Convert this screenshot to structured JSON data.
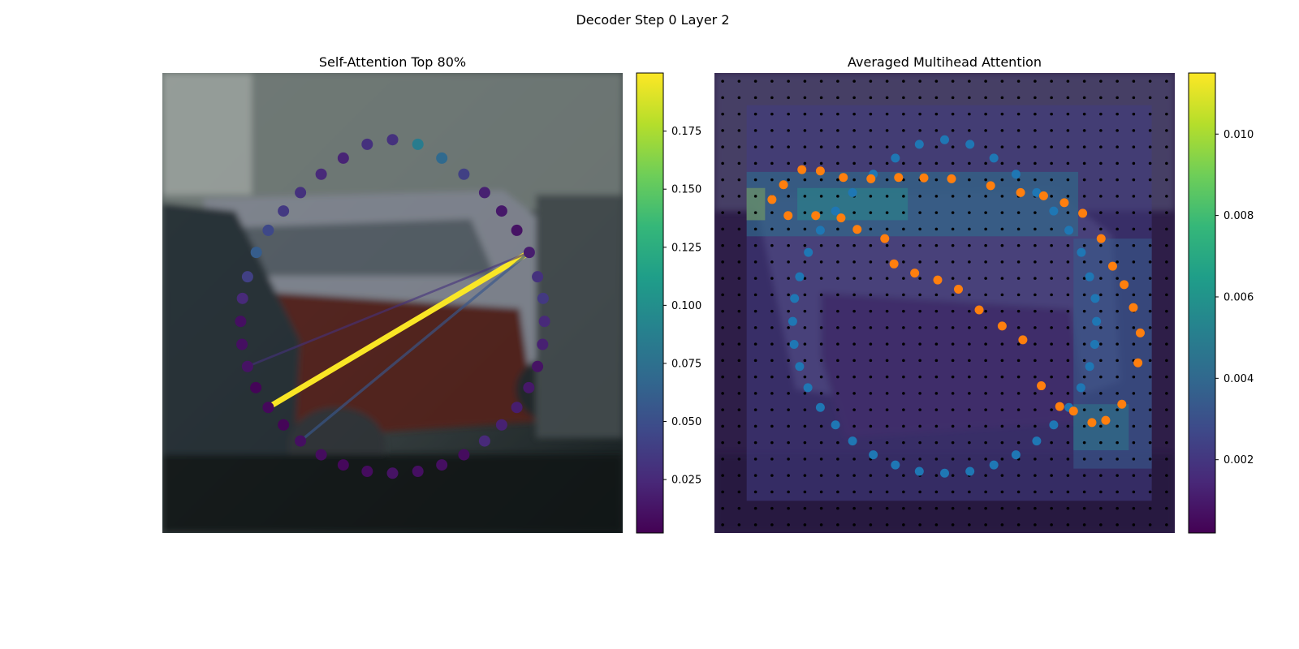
{
  "figure": {
    "suptitle": "Decoder Step 0 Layer 2"
  },
  "colors": {
    "viridis": [
      "#440154",
      "#482878",
      "#3e4989",
      "#31688e",
      "#26828e",
      "#1f9e89",
      "#35b779",
      "#6ece58",
      "#b5de2b",
      "#fde725"
    ],
    "series_blue": "#1f77b4",
    "series_orange": "#ff7f0e",
    "grid_dot": "#000000"
  },
  "chart_data": [
    {
      "type": "scatter",
      "title": "Self-Attention Top 80%",
      "background": "photo-parked-cars",
      "grid": false,
      "colorbar": {
        "range": [
          0.002,
          0.2
        ],
        "ticks": [
          0.025,
          0.05,
          0.075,
          0.1,
          0.125,
          0.15,
          0.175
        ],
        "tick_labels": [
          "0.025",
          "0.050",
          "0.075",
          "0.100",
          "0.125",
          "0.150",
          "0.175"
        ]
      },
      "points": {
        "x": [
          0.5,
          0.555,
          0.607,
          0.655,
          0.7,
          0.737,
          0.77,
          0.797,
          0.815,
          0.827,
          0.83,
          0.826,
          0.815,
          0.796,
          0.77,
          0.737,
          0.7,
          0.655,
          0.607,
          0.555,
          0.5,
          0.445,
          0.393,
          0.345,
          0.3,
          0.263,
          0.23,
          0.203,
          0.185,
          0.173,
          0.17,
          0.174,
          0.185,
          0.204,
          0.23,
          0.263,
          0.3,
          0.345,
          0.393,
          0.445
        ],
        "y": [
          0.145,
          0.155,
          0.185,
          0.22,
          0.26,
          0.3,
          0.342,
          0.39,
          0.443,
          0.49,
          0.54,
          0.59,
          0.638,
          0.684,
          0.727,
          0.765,
          0.8,
          0.83,
          0.852,
          0.866,
          0.87,
          0.866,
          0.852,
          0.83,
          0.8,
          0.765,
          0.727,
          0.684,
          0.638,
          0.59,
          0.54,
          0.49,
          0.443,
          0.39,
          0.342,
          0.3,
          0.26,
          0.22,
          0.185,
          0.155
        ],
        "weight": [
          0.03,
          0.085,
          0.07,
          0.04,
          0.02,
          0.015,
          0.012,
          0.018,
          0.03,
          0.035,
          0.025,
          0.02,
          0.012,
          0.015,
          0.018,
          0.02,
          0.025,
          0.008,
          0.01,
          0.01,
          0.012,
          0.008,
          0.006,
          0.008,
          0.01,
          0.004,
          0.006,
          0.004,
          0.012,
          0.01,
          0.01,
          0.025,
          0.04,
          0.06,
          0.045,
          0.035,
          0.03,
          0.025,
          0.022,
          0.03
        ]
      },
      "attention_lines": [
        {
          "from": 0.166,
          "to": 0.657,
          "weight": 0.199
        },
        {
          "from": 0.166,
          "to": 0.607,
          "weight": 0.055
        },
        {
          "from": 0.166,
          "to": 0.7,
          "weight": 0.03
        }
      ]
    },
    {
      "type": "heatmap",
      "title": "Averaged Multihead Attention",
      "background": "photo-parked-cars",
      "grid_points": true,
      "colorbar": {
        "range": [
          0.0002,
          0.0115
        ],
        "ticks": [
          0.002,
          0.004,
          0.006,
          0.008,
          0.01
        ],
        "tick_labels": [
          "0.002",
          "0.004",
          "0.006",
          "0.008",
          "0.010"
        ]
      },
      "heat_blocks": [
        {
          "x0": 0.07,
          "x1": 0.79,
          "y0": 0.215,
          "y1": 0.355,
          "value": 0.0045
        },
        {
          "x0": 0.18,
          "x1": 0.42,
          "y0": 0.25,
          "y1": 0.32,
          "value": 0.0068
        },
        {
          "x0": 0.07,
          "x1": 0.11,
          "y0": 0.25,
          "y1": 0.32,
          "value": 0.011
        },
        {
          "x0": 0.78,
          "x1": 0.95,
          "y0": 0.36,
          "y1": 0.86,
          "value": 0.0035
        },
        {
          "x0": 0.78,
          "x1": 0.9,
          "y0": 0.72,
          "y1": 0.82,
          "value": 0.0063
        },
        {
          "x0": 0.07,
          "x1": 0.95,
          "y0": 0.07,
          "y1": 0.93,
          "value": 0.0022
        }
      ],
      "series_blue": {
        "x": [
          0.5,
          0.555,
          0.607,
          0.655,
          0.7,
          0.737,
          0.77,
          0.797,
          0.815,
          0.827,
          0.83,
          0.826,
          0.815,
          0.796,
          0.77,
          0.737,
          0.7,
          0.655,
          0.607,
          0.555,
          0.5,
          0.445,
          0.393,
          0.345,
          0.3,
          0.263,
          0.23,
          0.203,
          0.185,
          0.173,
          0.17,
          0.174,
          0.185,
          0.204,
          0.23,
          0.263,
          0.3,
          0.345,
          0.393,
          0.445
        ],
        "y": [
          0.145,
          0.155,
          0.185,
          0.22,
          0.26,
          0.3,
          0.342,
          0.39,
          0.443,
          0.49,
          0.54,
          0.59,
          0.638,
          0.684,
          0.727,
          0.765,
          0.8,
          0.83,
          0.852,
          0.866,
          0.87,
          0.866,
          0.852,
          0.83,
          0.8,
          0.765,
          0.727,
          0.684,
          0.638,
          0.59,
          0.54,
          0.49,
          0.443,
          0.39,
          0.342,
          0.3,
          0.26,
          0.22,
          0.185,
          0.155
        ]
      },
      "series_orange": {
        "x": [
          0.125,
          0.15,
          0.19,
          0.23,
          0.28,
          0.34,
          0.4,
          0.455,
          0.515,
          0.6,
          0.665,
          0.715,
          0.76,
          0.8,
          0.84,
          0.865,
          0.89,
          0.91,
          0.925,
          0.92,
          0.885,
          0.85,
          0.82,
          0.78,
          0.75,
          0.71,
          0.67,
          0.625,
          0.575,
          0.53,
          0.485,
          0.435,
          0.39,
          0.37,
          0.31,
          0.275,
          0.22,
          0.16
        ],
        "y": [
          0.275,
          0.243,
          0.21,
          0.213,
          0.227,
          0.23,
          0.227,
          0.228,
          0.23,
          0.245,
          0.26,
          0.267,
          0.282,
          0.305,
          0.36,
          0.42,
          0.46,
          0.51,
          0.565,
          0.63,
          0.72,
          0.755,
          0.76,
          0.735,
          0.725,
          0.68,
          0.58,
          0.55,
          0.515,
          0.47,
          0.45,
          0.435,
          0.415,
          0.36,
          0.34,
          0.315,
          0.31,
          0.31
        ]
      }
    }
  ]
}
